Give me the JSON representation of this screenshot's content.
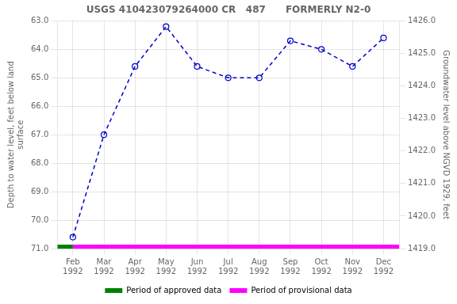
{
  "chart_data": {
    "type": "line",
    "title": "USGS 410423079264000 CR   487      FORMERLY N2-0",
    "y_label": "Depth to water level, feet below land\nsurface",
    "y2_label": "Groundwater level above NGVD 1929, feet",
    "categories": [
      "Feb\n1992",
      "Mar\n1992",
      "Apr\n1992",
      "May\n1992",
      "Jun\n1992",
      "Jul\n1992",
      "Aug\n1992",
      "Sep\n1992",
      "Oct\n1992",
      "Nov\n1992",
      "Dec\n1992"
    ],
    "series": [
      {
        "color": "#0000cc",
        "line_style": "dashed",
        "marker": "circle",
        "values": [
          70.6,
          67.0,
          64.6,
          63.2,
          64.6,
          65.0,
          65.0,
          63.7,
          64.0,
          64.6,
          63.6
        ]
      }
    ],
    "periods": [
      {
        "name": "Period of approved data",
        "color": "#008000",
        "end": "Feb\n1992"
      },
      {
        "name": "Period of provisional data",
        "color": "#ff00ff",
        "start": "Feb\n1992"
      }
    ],
    "ylim": [
      71.0,
      63.0
    ],
    "yticks": [
      {
        "value": 63.0,
        "label": "63.0"
      },
      {
        "value": 64.0,
        "label": "64.0"
      },
      {
        "value": 65.0,
        "label": "65.0"
      },
      {
        "value": 66.0,
        "label": "66.0"
      },
      {
        "value": 67.0,
        "label": "67.0"
      },
      {
        "value": 68.0,
        "label": "68.0"
      },
      {
        "value": 69.0,
        "label": "69.0"
      },
      {
        "value": 70.0,
        "label": "70.0"
      },
      {
        "value": 71.0,
        "label": "71.0"
      }
    ],
    "y2lim": [
      1419.0,
      1426.0
    ],
    "y2ticks": [
      {
        "value": 1419.0,
        "label": "1419.0"
      },
      {
        "value": 1420.0,
        "label": "1420.0"
      },
      {
        "value": 1421.0,
        "label": "1421.0"
      },
      {
        "value": 1422.0,
        "label": "1422.0"
      },
      {
        "value": 1423.0,
        "label": "1423.0"
      },
      {
        "value": 1424.0,
        "label": "1424.0"
      },
      {
        "value": 1425.0,
        "label": "1425.0"
      },
      {
        "value": 1426.0,
        "label": "1426.0"
      }
    ],
    "grid": true,
    "legend": "bottom"
  }
}
